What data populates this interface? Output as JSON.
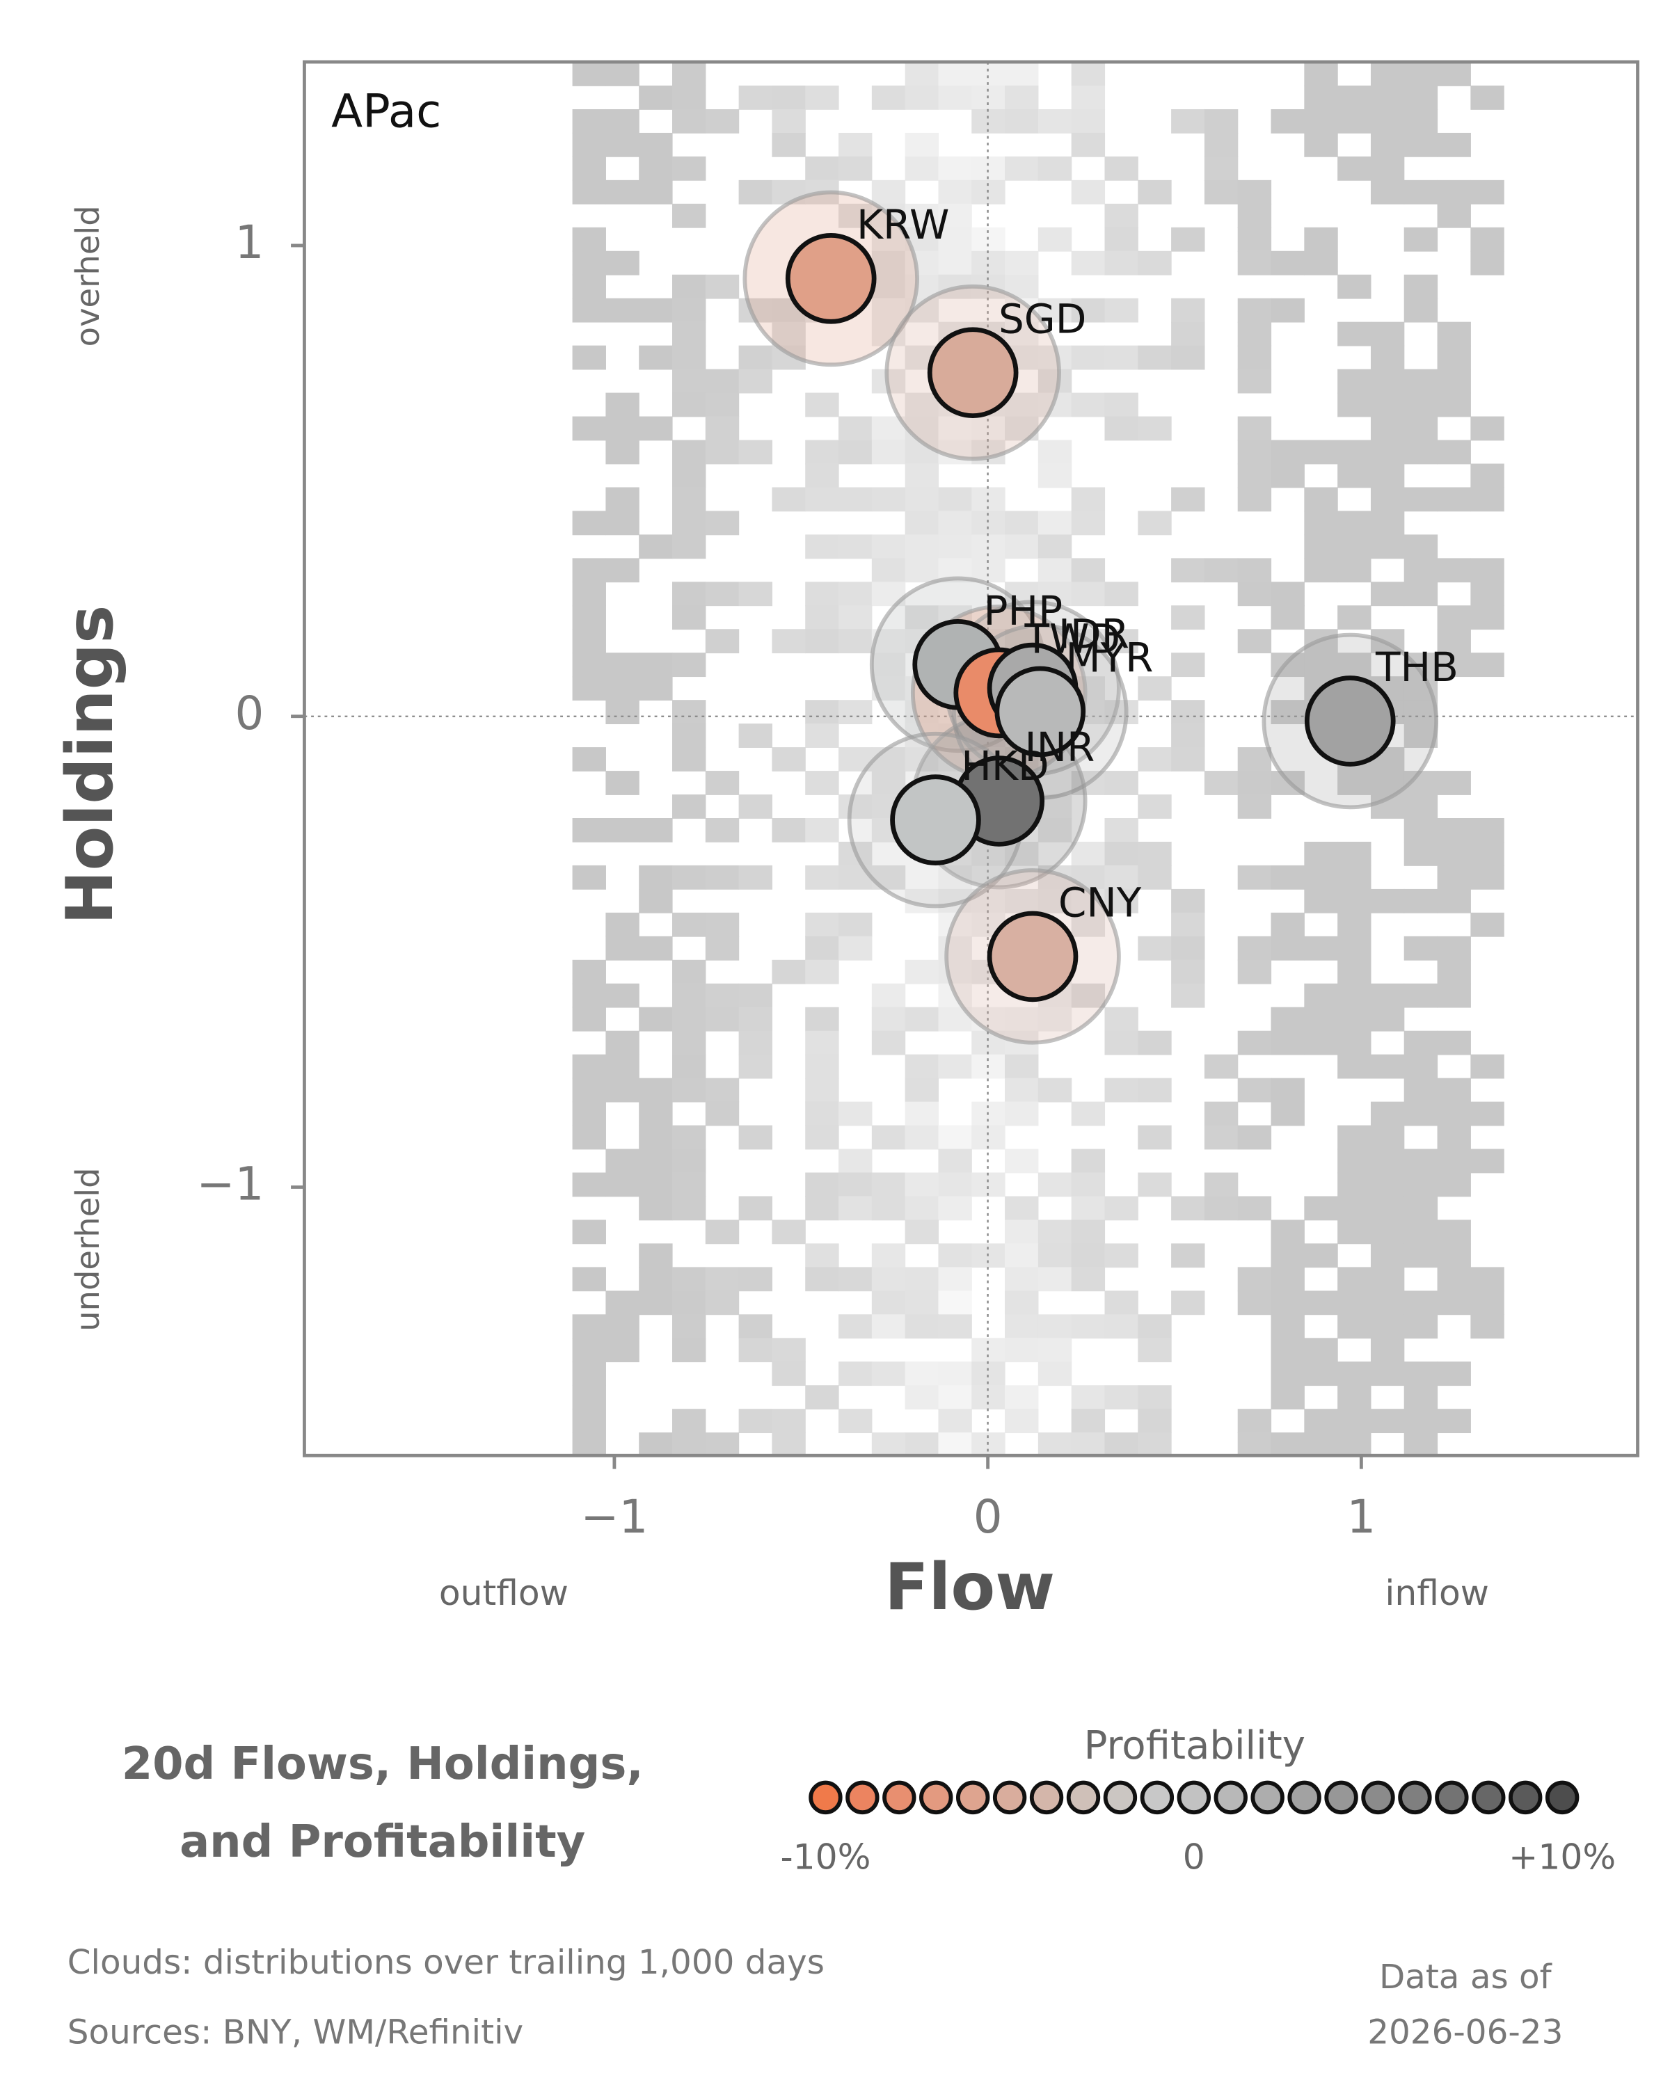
{
  "chart_data": {
    "type": "scatter",
    "panel_label": "APac",
    "x_label": "Flow",
    "y_label": "Holdings",
    "x_low_label": "outflow",
    "x_high_label": "inflow",
    "y_high_label": "overheld",
    "y_low_label": "underheld",
    "xlim": [
      -1.83,
      1.74
    ],
    "ylim": [
      -1.57,
      1.39
    ],
    "xticks": [
      {
        "value": -1,
        "label": "−1"
      },
      0,
      1
    ],
    "yticks": [
      {
        "value": -1,
        "label": "−1"
      },
      0,
      1
    ],
    "points": {
      "labels": [
        "KRW",
        "SGD",
        "PHP",
        "TWD",
        "IDR",
        "MYR",
        "INR",
        "HKD",
        "CNY",
        "THB"
      ],
      "x": [
        -0.42,
        -0.04,
        -0.08,
        0.03,
        0.12,
        0.14,
        0.03,
        -0.14,
        0.12,
        0.97
      ],
      "y": [
        0.93,
        0.73,
        0.11,
        0.05,
        0.06,
        0.01,
        -0.18,
        -0.22,
        -0.51,
        -0.01
      ],
      "colors": [
        "#e0a088",
        "#d8ab9a",
        "#b0b3b3",
        "#e98b69",
        "#a9a9a9",
        "#b8b9b9",
        "#727272",
        "#c2c5c5",
        "#d8b0a2",
        "#a2a2a2"
      ]
    },
    "title_lines": [
      "20d Flows, Holdings,",
      "and Profitability"
    ],
    "colorbar": {
      "title": "Profitability",
      "lim": [
        -10,
        10
      ],
      "ticks": [
        {
          "value": -10,
          "label": "-10%"
        },
        0,
        {
          "value": 10,
          "label": "+10%"
        }
      ],
      "colors": [
        "#f07a4a",
        "#ec8460",
        "#e88f70",
        "#e39a80",
        "#dea48f",
        "#d9ad9d",
        "#d4b6aa",
        "#cfc0b8",
        "#cbc6c2",
        "#c8c8c8",
        "#c2c2c2",
        "#b8b8b8",
        "#adadad",
        "#a2a2a2",
        "#979797",
        "#8b8b8b",
        "#7f7f7f",
        "#737373",
        "#676767",
        "#5a5a5a",
        "#4d4d4d"
      ]
    },
    "notes": [
      "Clouds:  distributions over trailing 1,000 days",
      "Sources:  BNY, WM/Refinitiv"
    ],
    "date_lines": [
      "Data as of",
      "2026-06-23"
    ]
  }
}
